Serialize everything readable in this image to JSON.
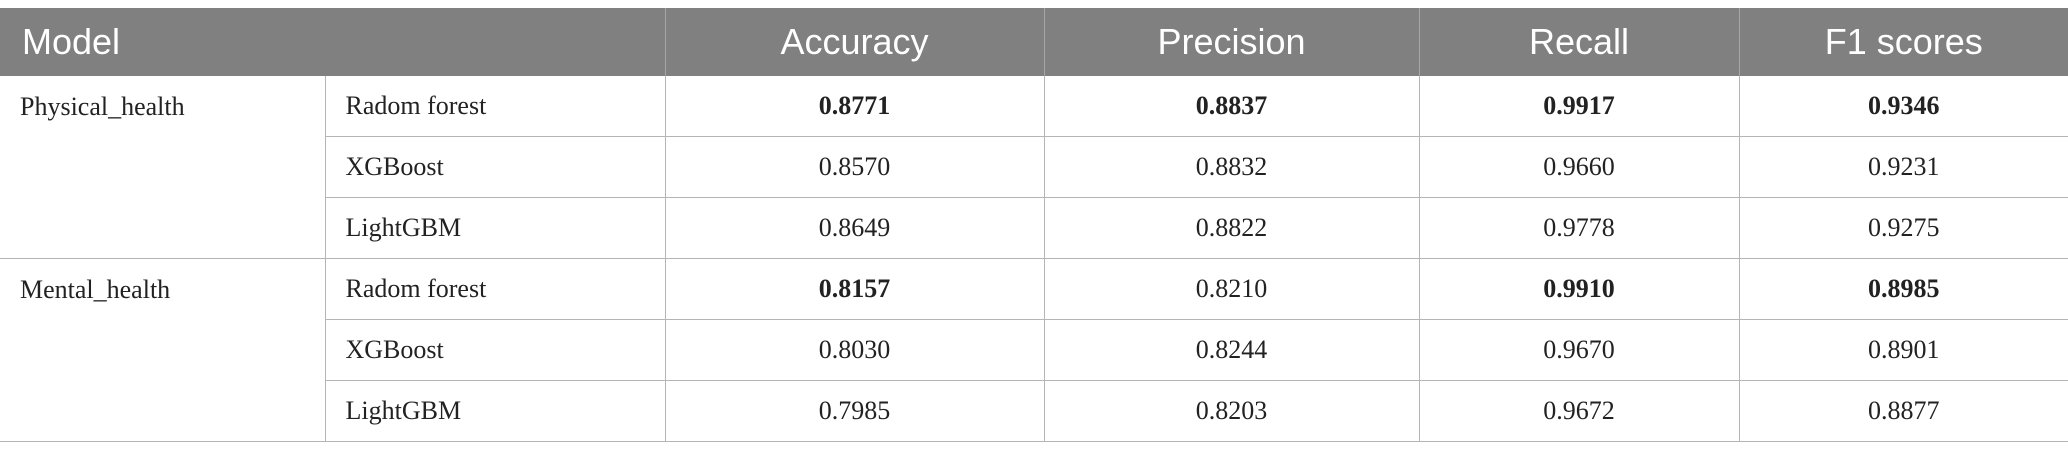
{
  "headers": {
    "model": "Model",
    "accuracy": "Accuracy",
    "precision": "Precision",
    "recall": "Recall",
    "f1": "F1 scores"
  },
  "groups": [
    {
      "name": "Physical_health",
      "rows": [
        {
          "model": "Radom forest",
          "accuracy": "0.8771",
          "precision": "0.8837",
          "recall": "0.9917",
          "f1": "0.9346",
          "bold": [
            "accuracy",
            "precision",
            "recall",
            "f1"
          ]
        },
        {
          "model": "XGBoost",
          "accuracy": "0.8570",
          "precision": "0.8832",
          "recall": "0.9660",
          "f1": "0.9231",
          "bold": []
        },
        {
          "model": "LightGBM",
          "accuracy": "0.8649",
          "precision": "0.8822",
          "recall": "0.9778",
          "f1": "0.9275",
          "bold": []
        }
      ]
    },
    {
      "name": "Mental_health",
      "rows": [
        {
          "model": "Radom forest",
          "accuracy": "0.8157",
          "precision": "0.8210",
          "recall": "0.9910",
          "f1": "0.8985",
          "bold": [
            "accuracy",
            "recall",
            "f1"
          ]
        },
        {
          "model": "XGBoost",
          "accuracy": "0.8030",
          "precision": "0.8244",
          "recall": "0.9670",
          "f1": "0.8901",
          "bold": []
        },
        {
          "model": "LightGBM",
          "accuracy": "0.7985",
          "precision": "0.8203",
          "recall": "0.9672",
          "f1": "0.8877",
          "bold": []
        }
      ]
    }
  ]
}
